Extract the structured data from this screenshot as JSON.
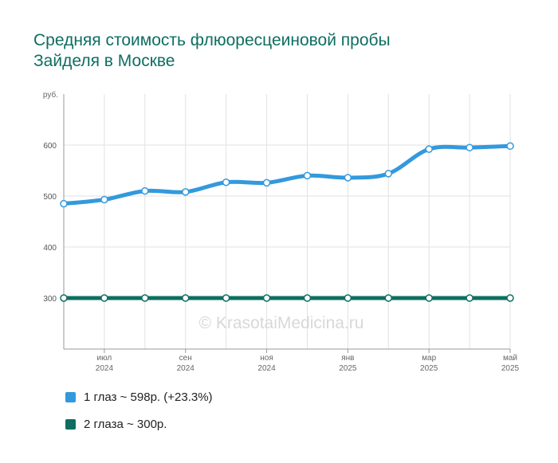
{
  "title_lines": [
    "Средняя стоимость флюоресцеиновой пробы",
    "Зайделя в Москве"
  ],
  "watermark": "© KrasotaiMedicina.ru",
  "legend": [
    {
      "label": "1 глаз ~ 598р. (+23.3%)",
      "color": "#3399dd"
    },
    {
      "label": "2 глаза ~ 300р.",
      "color": "#0e6e62"
    }
  ],
  "chart_data": {
    "type": "line",
    "y_unit": "руб.",
    "ylim": [
      200,
      700
    ],
    "yticks": [
      300,
      400,
      500,
      600
    ],
    "grid": true,
    "x_tick_labels": [
      {
        "month": "июл",
        "year": "2024"
      },
      {
        "month": "сен",
        "year": "2024"
      },
      {
        "month": "ноя",
        "year": "2024"
      },
      {
        "month": "янв",
        "year": "2025"
      },
      {
        "month": "мар",
        "year": "2025"
      },
      {
        "month": "май",
        "year": "2025"
      }
    ],
    "categories": [
      "2024-06",
      "2024-07",
      "2024-08",
      "2024-09",
      "2024-10",
      "2024-11",
      "2024-12",
      "2025-01",
      "2025-02",
      "2025-03",
      "2025-04",
      "2025-05"
    ],
    "series": [
      {
        "name": "1 глаз",
        "color": "#3399dd",
        "values": [
          485,
          493,
          510,
          508,
          527,
          526,
          540,
          536,
          544,
          592,
          595,
          598
        ]
      },
      {
        "name": "2 глаза",
        "color": "#0e6e62",
        "values": [
          300,
          300,
          300,
          300,
          300,
          300,
          300,
          300,
          300,
          300,
          300,
          300
        ]
      }
    ]
  }
}
